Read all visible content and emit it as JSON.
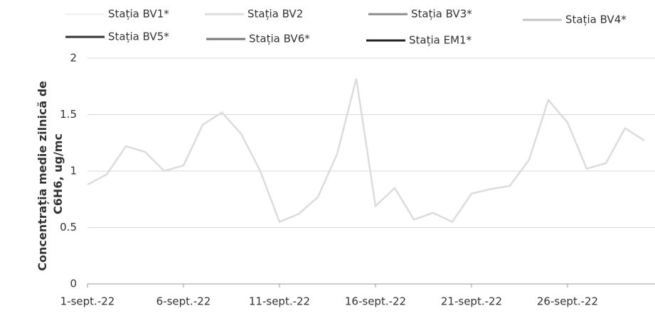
{
  "chart_data": {
    "type": "line",
    "ylabel": [
      "Concentrația medie zilnică de",
      "C6H6, ug/mc"
    ],
    "categories": [
      "1-sept.-22",
      null,
      null,
      null,
      null,
      "6-sept.-22",
      null,
      null,
      null,
      null,
      "11-sept.-22",
      null,
      null,
      null,
      null,
      "16-sept.-22",
      null,
      null,
      null,
      null,
      "21-sept.-22",
      null,
      null,
      null,
      null,
      "26-sept.-22",
      null,
      null,
      null,
      null
    ],
    "series": [
      {
        "name": "Stația BV1*",
        "color": "#f4f4f4",
        "values": [
          null,
          null,
          null,
          null,
          null,
          null,
          null,
          null,
          null,
          null,
          null,
          null,
          null,
          null,
          null,
          null,
          null,
          null,
          null,
          null,
          null,
          null,
          null,
          null,
          null,
          null,
          null,
          null,
          null,
          null
        ]
      },
      {
        "name": "Stația BV2",
        "color": "#dcdcdc",
        "values": [
          0.88,
          0.97,
          1.22,
          1.17,
          1.0,
          1.05,
          1.41,
          1.52,
          1.33,
          1.0,
          0.55,
          0.62,
          0.77,
          1.15,
          1.82,
          0.69,
          0.85,
          0.57,
          0.63,
          0.55,
          0.8,
          0.84,
          0.87,
          1.1,
          1.63,
          1.43,
          1.02,
          1.07,
          1.38,
          1.27
        ]
      },
      {
        "name": "Stația BV3*",
        "color": "#8c8c8c",
        "values": [
          null,
          null,
          null,
          null,
          null,
          null,
          null,
          null,
          null,
          null,
          null,
          null,
          null,
          null,
          null,
          null,
          null,
          null,
          null,
          null,
          null,
          null,
          null,
          null,
          null,
          null,
          null,
          null,
          null,
          null
        ]
      },
      {
        "name": "Stația BV4*",
        "color": "#c4c4c4",
        "values": [
          null,
          null,
          null,
          null,
          null,
          null,
          null,
          null,
          null,
          null,
          null,
          null,
          null,
          null,
          null,
          null,
          null,
          null,
          null,
          null,
          null,
          null,
          null,
          null,
          null,
          null,
          null,
          null,
          null,
          null
        ]
      },
      {
        "name": "Stația BV5*",
        "color": "#333333",
        "values": [
          null,
          null,
          null,
          null,
          null,
          null,
          null,
          null,
          null,
          null,
          null,
          null,
          null,
          null,
          null,
          null,
          null,
          null,
          null,
          null,
          null,
          null,
          null,
          null,
          null,
          null,
          null,
          null,
          null,
          null
        ]
      },
      {
        "name": "Stația BV6*",
        "color": "#777777",
        "values": [
          null,
          null,
          null,
          null,
          null,
          null,
          null,
          null,
          null,
          null,
          null,
          null,
          null,
          null,
          null,
          null,
          null,
          null,
          null,
          null,
          null,
          null,
          null,
          null,
          null,
          null,
          null,
          null,
          null,
          null
        ]
      },
      {
        "name": "Stația EM1*",
        "color": "#222222",
        "values": [
          null,
          null,
          null,
          null,
          null,
          null,
          null,
          null,
          null,
          null,
          null,
          null,
          null,
          null,
          null,
          null,
          null,
          null,
          null,
          null,
          null,
          null,
          null,
          null,
          null,
          null,
          null,
          null,
          null,
          null
        ]
      }
    ],
    "ylim": [
      0,
      2
    ],
    "yticks": [
      0,
      0.5,
      1,
      1.5,
      2
    ],
    "grid": true
  }
}
